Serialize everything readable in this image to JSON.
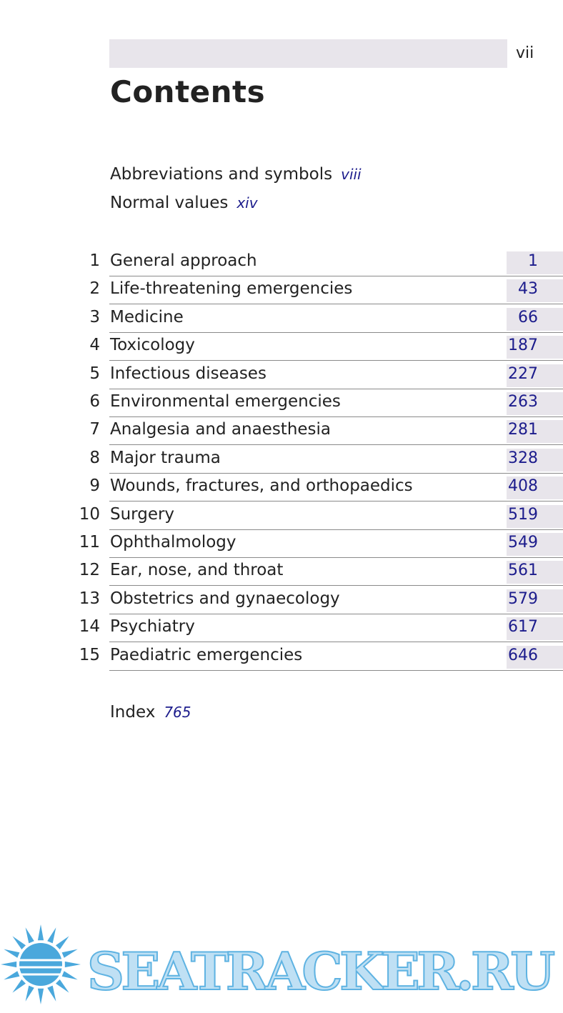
{
  "header": {
    "page_number": "vii"
  },
  "title": "Contents",
  "front_matter": [
    {
      "label": "Abbreviations and symbols",
      "page": "viii"
    },
    {
      "label": "Normal values",
      "page": "xiv"
    }
  ],
  "chapters": [
    {
      "number": 1,
      "title": "General approach",
      "page": 1
    },
    {
      "number": 2,
      "title": "Life-threatening emergencies",
      "page": 43
    },
    {
      "number": 3,
      "title": "Medicine",
      "page": 66
    },
    {
      "number": 4,
      "title": "Toxicology",
      "page": 187
    },
    {
      "number": 5,
      "title": "Infectious diseases",
      "page": 227
    },
    {
      "number": 6,
      "title": "Environmental emergencies",
      "page": 263
    },
    {
      "number": 7,
      "title": "Analgesia and anaesthesia",
      "page": 281
    },
    {
      "number": 8,
      "title": "Major trauma",
      "page": 328
    },
    {
      "number": 9,
      "title": "Wounds, fractures, and orthopaedics",
      "page": 408
    },
    {
      "number": 10,
      "title": "Surgery",
      "page": 519
    },
    {
      "number": 11,
      "title": "Ophthalmology",
      "page": 549
    },
    {
      "number": 12,
      "title": "Ear, nose, and throat",
      "page": 561
    },
    {
      "number": 13,
      "title": "Obstetrics and gynaecology",
      "page": 579
    },
    {
      "number": 14,
      "title": "Psychiatry",
      "page": 617
    },
    {
      "number": 15,
      "title": "Paediatric emergencies",
      "page": 646
    }
  ],
  "index": {
    "label": "Index",
    "page": 765
  },
  "watermark": "SEATRACKER.RU"
}
